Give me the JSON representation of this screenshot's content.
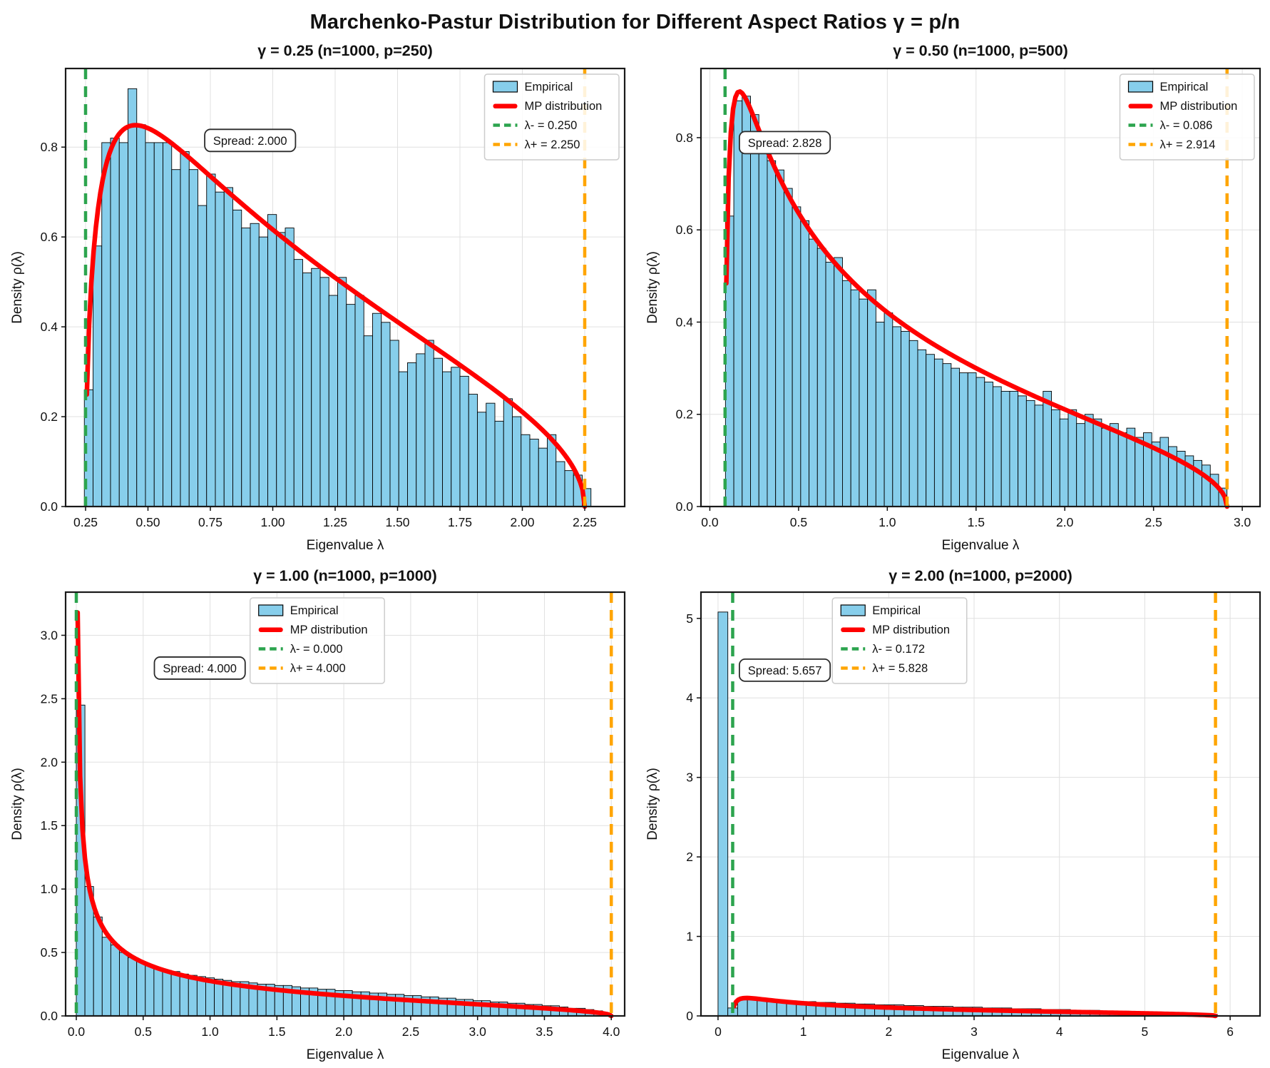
{
  "figure": {
    "title": "Marchenko-Pastur Distribution for Different Aspect Ratios γ = p/n",
    "background": "#ffffff"
  },
  "colors": {
    "bar_fill": "#87CEEB",
    "bar_edge": "#000000",
    "mp_line": "#ff0000",
    "lambda_minus_line": "#2ca44e",
    "lambda_plus_line": "#ffa500",
    "grid": "#e0e0e0",
    "frame": "#1a1a1a",
    "text": "#111111",
    "legend_border": "#cccccc",
    "annotation_border": "#2b2b2b"
  },
  "chart_data": [
    {
      "type": "bar",
      "title": "γ = 0.25 (n=1000, p=250)",
      "xlabel": "Eigenvalue λ",
      "ylabel": "Density ρ(λ)",
      "gamma": 0.25,
      "n": 1000,
      "p": 250,
      "lambda_minus": 0.25,
      "lambda_plus": 2.25,
      "spread": 2.0,
      "spread_label": "Spread: 2.000",
      "legend_labels": [
        "Empirical",
        "MP distribution",
        "λ- = 0.250",
        "λ+ = 2.250"
      ],
      "legend_fx": null,
      "spread_fx": 0.33,
      "spread_fy": 0.165,
      "xlim": [
        0.17,
        2.41
      ],
      "ylim": [
        0,
        0.975
      ],
      "xticks": [
        0.25,
        0.5,
        0.75,
        1.0,
        1.25,
        1.5,
        1.75,
        2.0,
        2.25
      ],
      "xtick_labels": [
        "0.25",
        "0.50",
        "0.75",
        "1.00",
        "1.25",
        "1.50",
        "1.75",
        "2.00",
        "2.25"
      ],
      "yticks": [
        0.0,
        0.2,
        0.4,
        0.6,
        0.8
      ],
      "ytick_labels": [
        "0.0",
        "0.2",
        "0.4",
        "0.6",
        "0.8"
      ],
      "grid_on": true,
      "hist": {
        "start": 0.245,
        "bin_width": 0.035,
        "heights": [
          0.26,
          0.58,
          0.81,
          0.82,
          0.81,
          0.93,
          0.85,
          0.81,
          0.81,
          0.81,
          0.75,
          0.79,
          0.75,
          0.67,
          0.74,
          0.7,
          0.71,
          0.66,
          0.62,
          0.63,
          0.6,
          0.65,
          0.61,
          0.62,
          0.55,
          0.52,
          0.53,
          0.51,
          0.47,
          0.51,
          0.45,
          0.47,
          0.38,
          0.43,
          0.41,
          0.37,
          0.3,
          0.32,
          0.34,
          0.37,
          0.33,
          0.3,
          0.31,
          0.29,
          0.25,
          0.21,
          0.23,
          0.19,
          0.24,
          0.2,
          0.16,
          0.15,
          0.13,
          0.16,
          0.1,
          0.08,
          0.07,
          0.04
        ]
      }
    },
    {
      "type": "bar",
      "title": "γ = 0.50 (n=1000, p=500)",
      "xlabel": "Eigenvalue λ",
      "ylabel": "Density ρ(λ)",
      "gamma": 0.5,
      "n": 1000,
      "p": 500,
      "lambda_minus": 0.0858,
      "lambda_plus": 2.9142,
      "spread": 2.828,
      "spread_label": "Spread: 2.828",
      "legend_labels": [
        "Empirical",
        "MP distribution",
        "λ- = 0.086",
        "λ+ = 2.914"
      ],
      "legend_fx": null,
      "spread_fx": 0.15,
      "spread_fy": 0.17,
      "xlim": [
        -0.05,
        3.1
      ],
      "ylim": [
        0,
        0.95
      ],
      "xticks": [
        0.0,
        0.5,
        1.0,
        1.5,
        2.0,
        2.5,
        3.0
      ],
      "xtick_labels": [
        "0.0",
        "0.5",
        "1.0",
        "1.5",
        "2.0",
        "2.5",
        "3.0"
      ],
      "yticks": [
        0.0,
        0.2,
        0.4,
        0.6,
        0.8
      ],
      "ytick_labels": [
        "0.0",
        "0.2",
        "0.4",
        "0.6",
        "0.8"
      ],
      "grid_on": true,
      "hist": {
        "start": 0.088,
        "bin_width": 0.0471,
        "heights": [
          0.63,
          0.88,
          0.89,
          0.85,
          0.8,
          0.75,
          0.73,
          0.69,
          0.65,
          0.62,
          0.58,
          0.56,
          0.53,
          0.54,
          0.49,
          0.47,
          0.45,
          0.47,
          0.4,
          0.42,
          0.39,
          0.38,
          0.36,
          0.34,
          0.33,
          0.32,
          0.31,
          0.3,
          0.29,
          0.29,
          0.28,
          0.27,
          0.26,
          0.25,
          0.25,
          0.24,
          0.23,
          0.22,
          0.25,
          0.21,
          0.19,
          0.21,
          0.18,
          0.2,
          0.19,
          0.17,
          0.18,
          0.16,
          0.17,
          0.15,
          0.16,
          0.14,
          0.15,
          0.13,
          0.12,
          0.11,
          0.1,
          0.09,
          0.07,
          0.04
        ]
      }
    },
    {
      "type": "bar",
      "title": "γ = 1.00 (n=1000, p=1000)",
      "xlabel": "Eigenvalue λ",
      "ylabel": "Density ρ(λ)",
      "gamma": 1.0,
      "n": 1000,
      "p": 1000,
      "lambda_minus": 0.0,
      "lambda_plus": 4.0,
      "spread": 4.0,
      "spread_label": "Spread: 4.000",
      "legend_labels": [
        "Empirical",
        "MP distribution",
        "λ- = 0.000",
        "λ+ = 4.000"
      ],
      "legend_fx": 0.33,
      "spread_fx": 0.24,
      "spread_fy": 0.18,
      "xlim": [
        -0.08,
        4.1
      ],
      "ylim": [
        0,
        3.34
      ],
      "xticks": [
        0.0,
        0.5,
        1.0,
        1.5,
        2.0,
        2.5,
        3.0,
        3.5,
        4.0
      ],
      "xtick_labels": [
        "0.0",
        "0.5",
        "1.0",
        "1.5",
        "2.0",
        "2.5",
        "3.0",
        "3.5",
        "4.0"
      ],
      "yticks": [
        0.0,
        0.5,
        1.0,
        1.5,
        2.0,
        2.5,
        3.0
      ],
      "ytick_labels": [
        "0.0",
        "0.5",
        "1.0",
        "1.5",
        "2.0",
        "2.5",
        "3.0"
      ],
      "grid_on": true,
      "hist": {
        "start": 0.0,
        "bin_width": 0.0645,
        "heights": [
          2.45,
          1.02,
          0.78,
          0.62,
          0.56,
          0.5,
          0.46,
          0.43,
          0.4,
          0.38,
          0.36,
          0.35,
          0.33,
          0.32,
          0.31,
          0.3,
          0.29,
          0.28,
          0.27,
          0.27,
          0.26,
          0.25,
          0.25,
          0.24,
          0.24,
          0.23,
          0.22,
          0.22,
          0.21,
          0.21,
          0.2,
          0.2,
          0.19,
          0.19,
          0.18,
          0.18,
          0.17,
          0.17,
          0.16,
          0.16,
          0.15,
          0.15,
          0.14,
          0.14,
          0.13,
          0.13,
          0.12,
          0.12,
          0.11,
          0.11,
          0.1,
          0.1,
          0.09,
          0.09,
          0.08,
          0.08,
          0.07,
          0.06,
          0.06,
          0.05,
          0.04,
          0.02
        ]
      }
    },
    {
      "type": "bar",
      "title": "γ = 2.00 (n=1000, p=2000)",
      "xlabel": "Eigenvalue λ",
      "ylabel": "Density ρ(λ)",
      "gamma": 2.0,
      "n": 1000,
      "p": 2000,
      "lambda_minus": 0.1716,
      "lambda_plus": 5.8284,
      "spread": 5.657,
      "spread_label": "Spread: 5.657",
      "legend_labels": [
        "Empirical",
        "MP distribution",
        "λ- = 0.172",
        "λ+ = 5.828"
      ],
      "legend_fx": 0.235,
      "spread_fx": 0.15,
      "spread_fy": 0.185,
      "xlim": [
        -0.2,
        6.35
      ],
      "ylim": [
        0,
        5.33
      ],
      "xticks": [
        0,
        1,
        2,
        3,
        4,
        5,
        6
      ],
      "xtick_labels": [
        "0",
        "1",
        "2",
        "3",
        "4",
        "5",
        "6"
      ],
      "yticks": [
        0,
        1,
        2,
        3,
        4,
        5
      ],
      "ytick_labels": [
        "0",
        "1",
        "2",
        "3",
        "4",
        "5"
      ],
      "grid_on": true,
      "hist": {
        "start": 0.0,
        "bin_width": 0.1147,
        "heights": [
          5.08,
          0.1,
          0.21,
          0.22,
          0.21,
          0.2,
          0.19,
          0.19,
          0.18,
          0.18,
          0.17,
          0.17,
          0.16,
          0.16,
          0.15,
          0.15,
          0.14,
          0.14,
          0.14,
          0.13,
          0.13,
          0.12,
          0.12,
          0.12,
          0.11,
          0.11,
          0.11,
          0.1,
          0.1,
          0.1,
          0.09,
          0.09,
          0.09,
          0.08,
          0.08,
          0.08,
          0.07,
          0.07,
          0.07,
          0.06,
          0.06,
          0.06,
          0.05,
          0.05,
          0.05,
          0.04,
          0.04,
          0.04,
          0.03,
          0.03,
          0.02
        ]
      }
    }
  ]
}
